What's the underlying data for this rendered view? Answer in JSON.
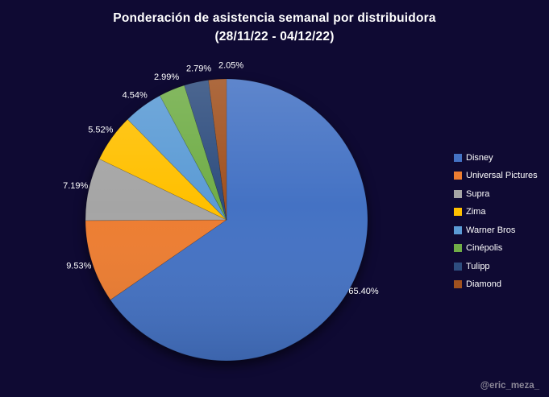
{
  "background_color": "#0F0A33",
  "title": {
    "line1": "Ponderación de asistencia semanal por distribuidora",
    "line2": "(28/11/22 - 04/12/22)",
    "color": "#FFFFFF"
  },
  "chart_data": {
    "type": "pie",
    "title": "Ponderación de asistencia semanal por distribuidora (28/11/22 - 04/12/22)",
    "unit": "%",
    "direction": "clockwise",
    "start_angle_deg": 0,
    "legend_position": "right",
    "categories": [
      "Disney",
      "Universal Pictures",
      "Supra",
      "Zima",
      "Warner Bros",
      "Cinépolis",
      "Tulipp",
      "Diamond"
    ],
    "values": [
      65.4,
      9.53,
      7.19,
      5.52,
      4.54,
      2.99,
      2.79,
      2.05
    ],
    "labels": [
      "65.40%",
      "9.53%",
      "7.19%",
      "5.52%",
      "4.54%",
      "2.99%",
      "2.79%",
      "2.05%"
    ],
    "colors": [
      "#4472C4",
      "#ED7D31",
      "#A5A5A5",
      "#FFC000",
      "#5B9BD5",
      "#70AD47",
      "#2E4D7E",
      "#A0511F"
    ],
    "label_color": "#FFFFFF"
  },
  "watermark": "@eric_meza_"
}
